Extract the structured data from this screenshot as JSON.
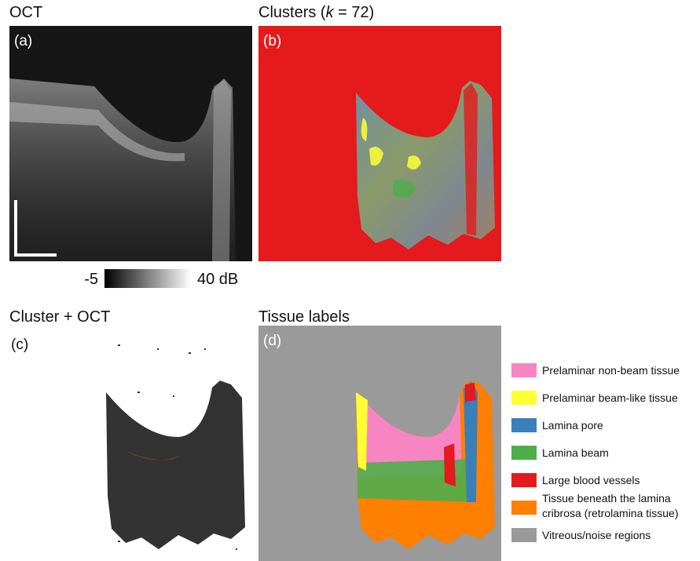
{
  "panels": [
    {
      "title": "OCT",
      "label": "(a)"
    },
    {
      "title": {
        "before": "Clusters (",
        "italic": "k",
        "after": " = 72)"
      },
      "label": "(b)"
    },
    {
      "title": "Cluster + OCT",
      "label": "(c)"
    },
    {
      "title": "Tissue labels",
      "label": "(d)"
    }
  ],
  "colorbar": {
    "min": "-5",
    "max": "40 dB"
  },
  "legend": [
    {
      "label": "Prelaminar non-beam tissue",
      "color": "#f785c4"
    },
    {
      "label": "Prelaminar beam-like tissue",
      "color": "#ffff33"
    },
    {
      "label": "Lamina pore",
      "color": "#3a7fba"
    },
    {
      "label": "Lamina beam",
      "color": "#4cae4a"
    },
    {
      "label": "Large blood vessels",
      "color": "#e41a1c"
    },
    {
      "label": [
        "Tissue beneath the lamina",
        "cribrosa (retrolamina tissue)"
      ],
      "color": "#ff7f00"
    },
    {
      "label": "Vitreous/noise regions",
      "color": "#9a9a9a"
    }
  ]
}
